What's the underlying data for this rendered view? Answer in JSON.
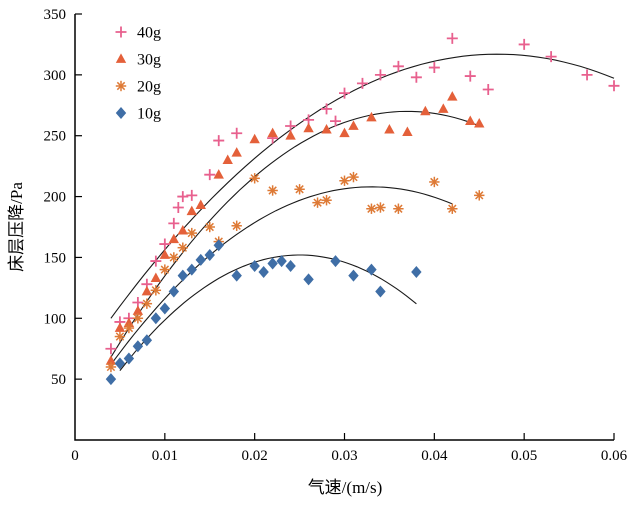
{
  "chart_data": {
    "type": "scatter",
    "title": "",
    "xlabel": "气速/(m/s)",
    "ylabel": "床层压降/Pa",
    "xlim": [
      0,
      0.06
    ],
    "ylim": [
      0,
      350
    ],
    "x_ticks": [
      0,
      0.01,
      0.02,
      0.03,
      0.04,
      0.05,
      0.06
    ],
    "x_tick_labels": [
      "0",
      "0.01",
      "0.02",
      "0.03",
      "0.04",
      "0.05",
      "0.06"
    ],
    "y_ticks": [
      50,
      100,
      150,
      200,
      250,
      300,
      350
    ],
    "y_tick_labels": [
      "50",
      "100",
      "150",
      "200",
      "250",
      "300",
      "350"
    ],
    "grid": false,
    "legend_position": "top-left",
    "axis_color": "#000000",
    "curve_color": "#1a1a1a",
    "series": [
      {
        "name": "40g",
        "marker": "plus",
        "color": "#e8608e",
        "points": [
          [
            0.004,
            75
          ],
          [
            0.005,
            97
          ],
          [
            0.006,
            100
          ],
          [
            0.007,
            113
          ],
          [
            0.008,
            128
          ],
          [
            0.009,
            147
          ],
          [
            0.01,
            161
          ],
          [
            0.011,
            178
          ],
          [
            0.0115,
            191
          ],
          [
            0.012,
            200
          ],
          [
            0.013,
            201
          ],
          [
            0.015,
            218
          ],
          [
            0.016,
            246
          ],
          [
            0.018,
            252
          ],
          [
            0.022,
            248
          ],
          [
            0.024,
            258
          ],
          [
            0.026,
            263
          ],
          [
            0.028,
            272
          ],
          [
            0.029,
            262
          ],
          [
            0.03,
            285
          ],
          [
            0.032,
            293
          ],
          [
            0.034,
            300
          ],
          [
            0.036,
            307
          ],
          [
            0.038,
            298
          ],
          [
            0.04,
            306
          ],
          [
            0.042,
            330
          ],
          [
            0.044,
            299
          ],
          [
            0.046,
            288
          ],
          [
            0.05,
            325
          ],
          [
            0.053,
            315
          ],
          [
            0.057,
            300
          ],
          [
            0.06,
            291
          ]
        ],
        "fit": {
          "x_range": [
            0.004,
            0.06
          ],
          "peak": [
            0.047,
            317
          ],
          "y_at_start": 100
        }
      },
      {
        "name": "30g",
        "marker": "triangle",
        "color": "#e4603a",
        "points": [
          [
            0.004,
            65
          ],
          [
            0.005,
            92
          ],
          [
            0.006,
            96
          ],
          [
            0.007,
            106
          ],
          [
            0.008,
            122
          ],
          [
            0.009,
            133
          ],
          [
            0.01,
            152
          ],
          [
            0.011,
            165
          ],
          [
            0.012,
            172
          ],
          [
            0.013,
            188
          ],
          [
            0.014,
            193
          ],
          [
            0.016,
            218
          ],
          [
            0.017,
            230
          ],
          [
            0.018,
            236
          ],
          [
            0.02,
            247
          ],
          [
            0.022,
            252
          ],
          [
            0.024,
            250
          ],
          [
            0.026,
            256
          ],
          [
            0.028,
            255
          ],
          [
            0.03,
            252
          ],
          [
            0.031,
            258
          ],
          [
            0.033,
            265
          ],
          [
            0.035,
            255
          ],
          [
            0.037,
            253
          ],
          [
            0.039,
            270
          ],
          [
            0.041,
            272
          ],
          [
            0.042,
            282
          ],
          [
            0.044,
            262
          ],
          [
            0.045,
            260
          ]
        ],
        "fit": {
          "x_range": [
            0.004,
            0.045
          ],
          "peak": [
            0.037,
            270
          ],
          "y_at_start": 68
        }
      },
      {
        "name": "20g",
        "marker": "asterisk",
        "color": "#de7a36",
        "points": [
          [
            0.004,
            60
          ],
          [
            0.005,
            85
          ],
          [
            0.006,
            92
          ],
          [
            0.007,
            100
          ],
          [
            0.008,
            112
          ],
          [
            0.009,
            123
          ],
          [
            0.01,
            140
          ],
          [
            0.011,
            150
          ],
          [
            0.012,
            158
          ],
          [
            0.013,
            170
          ],
          [
            0.015,
            175
          ],
          [
            0.016,
            163
          ],
          [
            0.018,
            176
          ],
          [
            0.02,
            215
          ],
          [
            0.022,
            205
          ],
          [
            0.025,
            206
          ],
          [
            0.027,
            195
          ],
          [
            0.028,
            197
          ],
          [
            0.03,
            213
          ],
          [
            0.031,
            216
          ],
          [
            0.033,
            190
          ],
          [
            0.034,
            191
          ],
          [
            0.036,
            190
          ],
          [
            0.04,
            212
          ],
          [
            0.042,
            190
          ],
          [
            0.045,
            201
          ]
        ],
        "fit": {
          "x_range": [
            0.004,
            0.042
          ],
          "peak": [
            0.033,
            208
          ],
          "y_at_start": 62
        }
      },
      {
        "name": "10g",
        "marker": "diamond",
        "color": "#3f6ea6",
        "points": [
          [
            0.004,
            50
          ],
          [
            0.005,
            63
          ],
          [
            0.006,
            67
          ],
          [
            0.007,
            77
          ],
          [
            0.008,
            82
          ],
          [
            0.009,
            100
          ],
          [
            0.01,
            108
          ],
          [
            0.011,
            122
          ],
          [
            0.012,
            135
          ],
          [
            0.013,
            140
          ],
          [
            0.014,
            148
          ],
          [
            0.015,
            152
          ],
          [
            0.016,
            160
          ],
          [
            0.018,
            135
          ],
          [
            0.02,
            143
          ],
          [
            0.021,
            138
          ],
          [
            0.022,
            145
          ],
          [
            0.023,
            147
          ],
          [
            0.024,
            143
          ],
          [
            0.026,
            132
          ],
          [
            0.029,
            147
          ],
          [
            0.031,
            135
          ],
          [
            0.033,
            140
          ],
          [
            0.034,
            122
          ],
          [
            0.038,
            138
          ]
        ],
        "fit": {
          "x_range": [
            0.005,
            0.038
          ],
          "peak": [
            0.025,
            152
          ],
          "y_at_start": 57
        }
      }
    ]
  }
}
